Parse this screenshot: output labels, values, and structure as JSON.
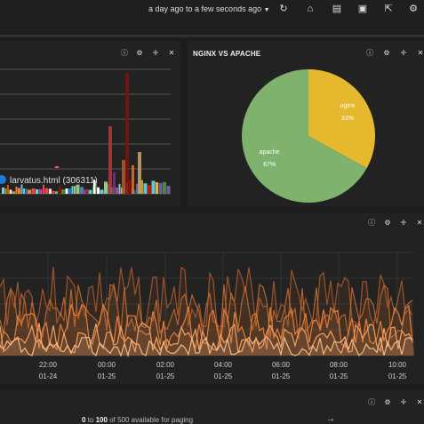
{
  "toolbar": {
    "timespan": "a day ago to a few seconds ago",
    "icons": [
      "refresh-icon",
      "home-icon",
      "folder-open-icon",
      "save-icon",
      "share-icon",
      "gear-icon"
    ]
  },
  "panels": {
    "bar_panel": {
      "legend_item": "larvatus.html (306311)"
    },
    "pie_panel": {
      "title": "NGINX VS APACHE"
    },
    "line_panel": {},
    "table_panel": {
      "paging_from": "0",
      "paging_to_word": "to",
      "paging_to": "100",
      "paging_rest": "of 500 available for paging",
      "next_arrow": "→"
    }
  },
  "chart_data": [
    {
      "type": "bar",
      "legend": [
        {
          "name": "larvatus.html (306311)",
          "color": "#1f78d1"
        }
      ],
      "grid": true
    },
    {
      "type": "pie",
      "title": "NGINX VS APACHE",
      "slices": [
        {
          "label": "nginx",
          "value": 33,
          "display": "33%",
          "color": "#e6b82e"
        },
        {
          "label": "apache",
          "value": 67,
          "display": "67%",
          "color": "#7eb26d"
        }
      ]
    },
    {
      "type": "line",
      "x_ticks": [
        {
          "time": "22:00",
          "date": "01-24"
        },
        {
          "time": "00:00",
          "date": "01-25"
        },
        {
          "time": "02:00",
          "date": "01-25"
        },
        {
          "time": "04:00",
          "date": "01-25"
        },
        {
          "time": "06:00",
          "date": "01-25"
        },
        {
          "time": "08:00",
          "date": "01-25"
        },
        {
          "time": "10:00",
          "date": "01-25"
        }
      ],
      "grid": true
    }
  ],
  "colors": {
    "accent": "#e8844a",
    "apache": "#7eb26d",
    "nginx": "#e6b82e"
  }
}
